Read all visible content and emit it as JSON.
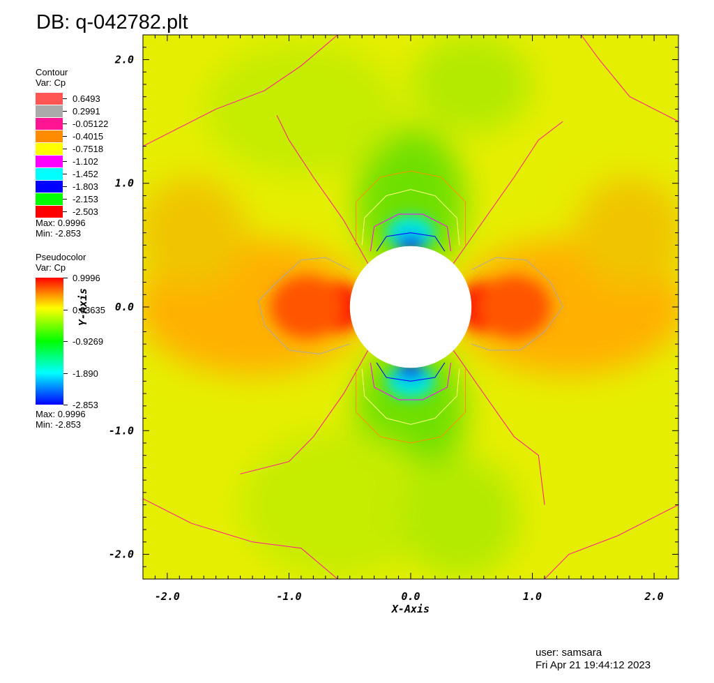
{
  "title": "DB: q-042782.plt",
  "contour_legend": {
    "heading": "Contour",
    "var": "Var: Cp",
    "levels": [
      {
        "label": "0.6493",
        "color": "#ff5555"
      },
      {
        "label": "0.2991",
        "color": "#aaaaaa"
      },
      {
        "label": "-0.05122",
        "color": "#ff1493"
      },
      {
        "label": "-0.4015",
        "color": "#ff8c00"
      },
      {
        "label": "-0.7518",
        "color": "#ffff00"
      },
      {
        "label": "-1.102",
        "color": "#ff00ff"
      },
      {
        "label": "-1.452",
        "color": "#00ffff"
      },
      {
        "label": "-1.803",
        "color": "#0000ff"
      },
      {
        "label": "-2.153",
        "color": "#00ff00"
      },
      {
        "label": "-2.503",
        "color": "#ff0000"
      }
    ],
    "max": "Max:  0.9996",
    "min": "Min: -2.853"
  },
  "pseudocolor_legend": {
    "heading": "Pseudocolor",
    "var": "Var: Cp",
    "ticks": [
      "0.9996",
      "0.03635",
      "-0.9269",
      "-1.890",
      "-2.853"
    ],
    "max": "Max:  0.9996",
    "min": "Min: -2.853"
  },
  "chart_data": {
    "type": "heatmap",
    "title": "DB: q-042782.plt",
    "xlabel": "X-Axis",
    "ylabel": "Y-Axis",
    "xlim": [
      -2.2,
      2.2
    ],
    "ylim": [
      -2.2,
      2.2
    ],
    "x_ticks": [
      -2.0,
      -1.0,
      0.0,
      1.0,
      2.0
    ],
    "y_ticks": [
      -2.0,
      -1.0,
      0.0,
      1.0,
      2.0
    ],
    "x_tick_labels": [
      "-2.0",
      "-1.0",
      "0.0",
      "1.0",
      "2.0"
    ],
    "y_tick_labels": [
      "-2.0",
      "-1.0",
      "0.0",
      "1.0",
      "2.0"
    ],
    "variable": "Cp",
    "value_range": [
      -2.853,
      0.9996
    ],
    "obstacle": {
      "shape": "circle",
      "center": [
        0.0,
        0.0
      ],
      "radius": 0.5
    },
    "contour_levels": [
      0.6493,
      0.2991,
      -0.05122,
      -0.4015,
      -0.7518,
      -1.102,
      -1.452,
      -1.803,
      -2.153,
      -2.503
    ],
    "colors": {
      "stagnation": "#ff0000",
      "freestream": "#ffff00",
      "low": "#0000ff"
    }
  },
  "footer": {
    "user": "user: samsara",
    "date": "Fri Apr 21 19:44:12 2023"
  }
}
